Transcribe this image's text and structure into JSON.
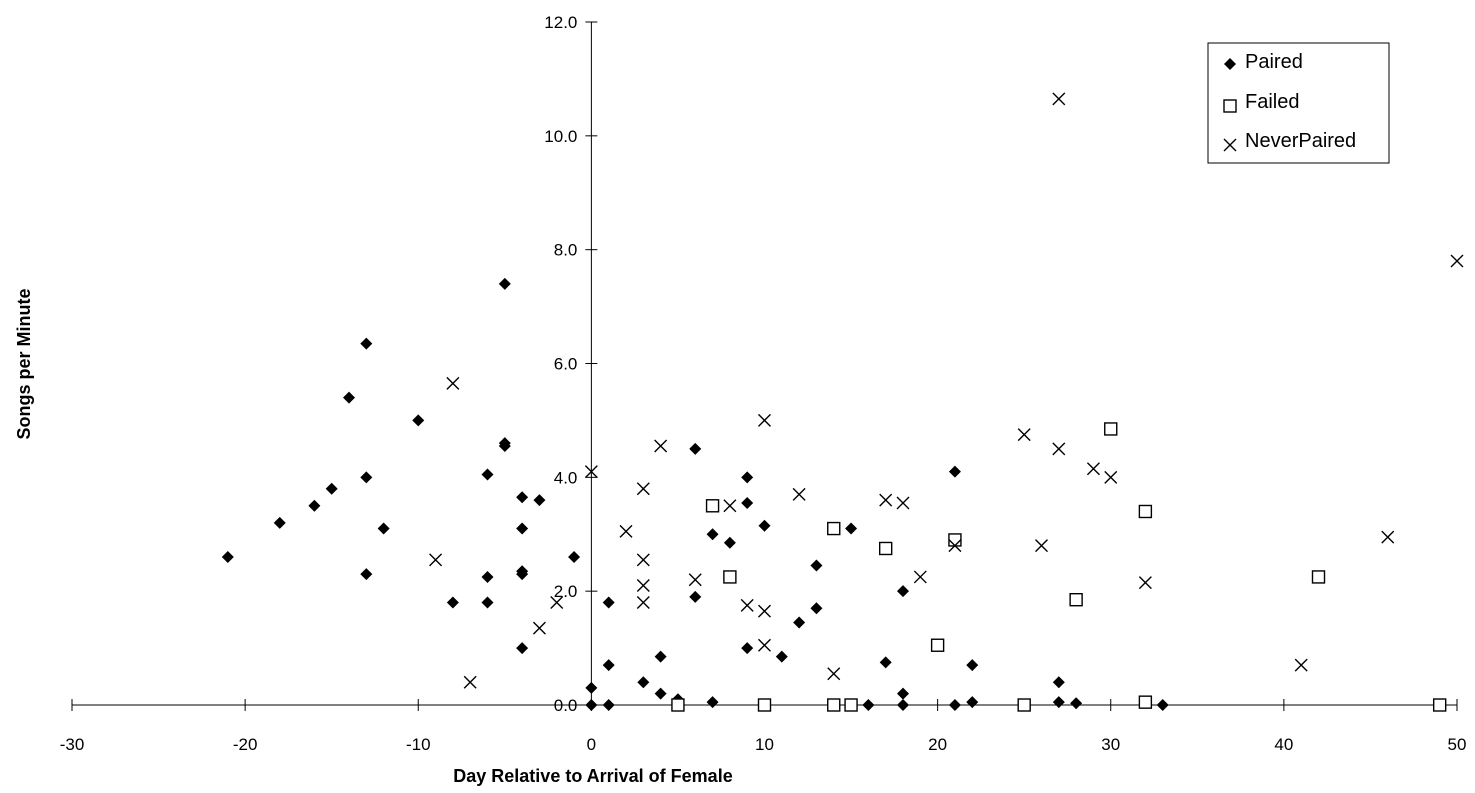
{
  "chart_data": {
    "type": "scatter",
    "title": "",
    "xlabel": "Day Relative to Arrival of Female",
    "ylabel": "Songs per Minute",
    "xlim": [
      -30,
      50
    ],
    "ylim": [
      0,
      12
    ],
    "x_ticks": [
      -30,
      -20,
      -10,
      0,
      10,
      20,
      30,
      40,
      50
    ],
    "y_ticks": [
      0,
      2,
      4,
      6,
      8,
      10,
      12
    ],
    "x_tick_labels": [
      "-30",
      "-20",
      "-10",
      "0",
      "10",
      "20",
      "30",
      "40",
      "50"
    ],
    "y_tick_labels": [
      "0.0",
      "2.0",
      "4.0",
      "6.0",
      "8.0",
      "10.0",
      "12.0"
    ],
    "grid": false,
    "legend": {
      "position": "top-right",
      "entries": [
        "Paired",
        "Failed",
        "NeverPaired"
      ]
    },
    "series": [
      {
        "name": "Paired",
        "marker": "diamond",
        "color": "#000000",
        "points": [
          [
            -21,
            2.6
          ],
          [
            -18,
            3.2
          ],
          [
            -16,
            3.5
          ],
          [
            -15,
            3.8
          ],
          [
            -14,
            5.4
          ],
          [
            -13,
            6.35
          ],
          [
            -13,
            4.0
          ],
          [
            -13,
            2.3
          ],
          [
            -12,
            3.1
          ],
          [
            -10,
            5.0
          ],
          [
            -8,
            1.8
          ],
          [
            -6,
            4.05
          ],
          [
            -6,
            2.25
          ],
          [
            -6,
            1.8
          ],
          [
            -5,
            7.4
          ],
          [
            -5,
            4.6
          ],
          [
            -5,
            4.55
          ],
          [
            -4,
            3.65
          ],
          [
            -4,
            3.1
          ],
          [
            -4,
            2.35
          ],
          [
            -4,
            2.3
          ],
          [
            -4,
            1.0
          ],
          [
            -3,
            3.6
          ],
          [
            -1,
            2.6
          ],
          [
            0,
            0.3
          ],
          [
            0,
            0.0
          ],
          [
            1,
            1.8
          ],
          [
            1,
            0.7
          ],
          [
            1,
            0.0
          ],
          [
            3,
            0.4
          ],
          [
            4,
            0.85
          ],
          [
            4,
            0.2
          ],
          [
            5,
            0.1
          ],
          [
            6,
            4.5
          ],
          [
            6,
            1.9
          ],
          [
            7,
            3.0
          ],
          [
            7,
            0.05
          ],
          [
            8,
            2.85
          ],
          [
            9,
            4.0
          ],
          [
            9,
            3.55
          ],
          [
            9,
            1.0
          ],
          [
            10,
            3.15
          ],
          [
            11,
            0.85
          ],
          [
            12,
            1.45
          ],
          [
            13,
            2.45
          ],
          [
            13,
            1.7
          ],
          [
            15,
            3.1
          ],
          [
            16,
            0.0
          ],
          [
            17,
            0.75
          ],
          [
            18,
            2.0
          ],
          [
            18,
            0.2
          ],
          [
            18,
            0.0
          ],
          [
            21,
            4.1
          ],
          [
            21,
            0.0
          ],
          [
            22,
            0.7
          ],
          [
            22,
            0.05
          ],
          [
            27,
            0.4
          ],
          [
            27,
            0.05
          ],
          [
            28,
            0.03
          ],
          [
            33,
            0.0
          ]
        ]
      },
      {
        "name": "Failed",
        "marker": "square",
        "color": "#000000",
        "points": [
          [
            5,
            0.0
          ],
          [
            7,
            3.5
          ],
          [
            8,
            2.25
          ],
          [
            10,
            0.0
          ],
          [
            14,
            3.1
          ],
          [
            14,
            0.0
          ],
          [
            15,
            0.0
          ],
          [
            17,
            2.75
          ],
          [
            20,
            1.05
          ],
          [
            21,
            2.9
          ],
          [
            25,
            0.0
          ],
          [
            28,
            1.85
          ],
          [
            30,
            4.85
          ],
          [
            32,
            3.4
          ],
          [
            32,
            0.05
          ],
          [
            42,
            2.25
          ],
          [
            49,
            0.0
          ]
        ]
      },
      {
        "name": "NeverPaired",
        "marker": "x",
        "color": "#000000",
        "points": [
          [
            -9,
            2.55
          ],
          [
            -8,
            5.65
          ],
          [
            -7,
            0.4
          ],
          [
            -3,
            1.35
          ],
          [
            -2,
            1.8
          ],
          [
            0,
            4.1
          ],
          [
            2,
            3.05
          ],
          [
            3,
            3.8
          ],
          [
            3,
            2.55
          ],
          [
            3,
            2.1
          ],
          [
            3,
            1.8
          ],
          [
            4,
            4.55
          ],
          [
            6,
            2.2
          ],
          [
            8,
            3.5
          ],
          [
            9,
            1.75
          ],
          [
            10,
            5.0
          ],
          [
            10,
            1.65
          ],
          [
            10,
            1.05
          ],
          [
            12,
            3.7
          ],
          [
            14,
            0.55
          ],
          [
            17,
            3.6
          ],
          [
            18,
            3.55
          ],
          [
            19,
            2.25
          ],
          [
            21,
            2.8
          ],
          [
            25,
            4.75
          ],
          [
            26,
            2.8
          ],
          [
            27,
            10.65
          ],
          [
            27,
            4.5
          ],
          [
            29,
            4.15
          ],
          [
            30,
            4.0
          ],
          [
            32,
            2.15
          ],
          [
            41,
            0.7
          ],
          [
            46,
            2.95
          ],
          [
            50,
            7.8
          ]
        ]
      }
    ]
  }
}
